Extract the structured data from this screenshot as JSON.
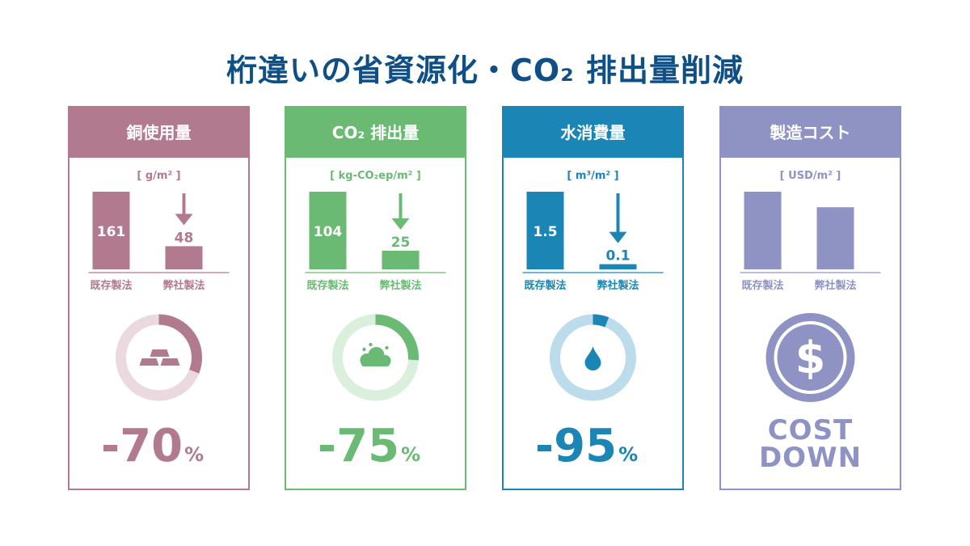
{
  "page": {
    "title": "桁違いの省資源化・CO₂ 排出量削減"
  },
  "colors": {
    "title": "#0e4f85",
    "copper": "#b27a8e",
    "copper_light": "#ead9df",
    "co2": "#6aba74",
    "co2_light": "#dbefdd",
    "water": "#1b86b6",
    "water_light": "#bcdcec",
    "cost": "#8f93c4",
    "cost_light": "#d8d9ec"
  },
  "chart_data": [
    {
      "type": "bar",
      "id": "copper",
      "title": "銅使用量",
      "unit": "[ g/m² ]",
      "categories": [
        "既存製法",
        "弊社製法"
      ],
      "values": [
        161,
        48
      ],
      "value_labels": [
        "161",
        "48"
      ],
      "reduction_percent": 70,
      "reduction_label": "-70",
      "percent_sign": "%",
      "icon": "gold-bars-icon"
    },
    {
      "type": "bar",
      "id": "co2",
      "title": "CO₂ 排出量",
      "unit": "[ kg-CO₂ep/m² ]",
      "categories": [
        "既存製法",
        "弊社製法"
      ],
      "values": [
        104,
        25
      ],
      "value_labels": [
        "104",
        "25"
      ],
      "reduction_percent": 75,
      "reduction_label": "-75",
      "percent_sign": "%",
      "icon": "cloud-icon"
    },
    {
      "type": "bar",
      "id": "water",
      "title": "水消費量",
      "unit": "[ m³/m² ]",
      "categories": [
        "既存製法",
        "弊社製法"
      ],
      "values": [
        1.5,
        0.1
      ],
      "value_labels": [
        "1.5",
        "0.1"
      ],
      "reduction_percent": 95,
      "reduction_label": "-95",
      "percent_sign": "%",
      "icon": "water-drop-icon"
    },
    {
      "type": "bar",
      "id": "cost",
      "title": "製造コスト",
      "unit": "[ USD/m² ]",
      "categories": [
        "既存製法",
        "弊社製法"
      ],
      "values": [
        100,
        80
      ],
      "value_labels": [],
      "result_lines": [
        "COST",
        "DOWN"
      ],
      "icon": "dollar-coin-icon"
    }
  ]
}
